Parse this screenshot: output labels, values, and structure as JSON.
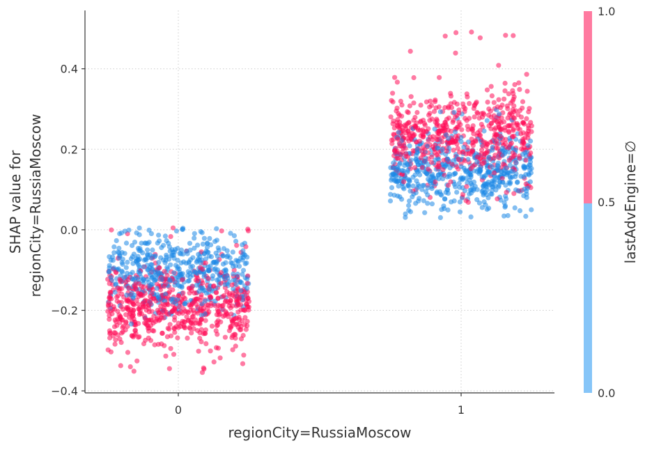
{
  "chart_data": {
    "type": "scatter",
    "title": "",
    "xlabel": "regionCity=RussiaMoscow",
    "ylabel_lines": [
      "SHAP value for",
      "regionCity=RussiaMoscow"
    ],
    "x_ticks": [
      0,
      1
    ],
    "x_tick_labels": [
      "0",
      "1"
    ],
    "xlim": [
      -0.33,
      1.33
    ],
    "y_ticks": [
      -0.4,
      -0.2,
      0.0,
      0.2,
      0.4
    ],
    "y_tick_labels": [
      "−0.4",
      "−0.2",
      "0.0",
      "0.2",
      "0.4"
    ],
    "ylim": [
      -0.405,
      0.55
    ],
    "grid": true,
    "jitter_width": 0.25,
    "colorbar": {
      "label": "lastAdvEngine=∅",
      "ticks": [
        0.0,
        0.5,
        1.0
      ],
      "tick_labels": [
        "0.0",
        "0.5",
        "1.0"
      ],
      "low_color": "#86c5f8",
      "high_color": "#ff7aa0"
    },
    "colors": {
      "low": "#1e88e5",
      "high": "#ff0d57"
    },
    "series": [
      {
        "feature_value": 0,
        "point_count": 1100,
        "blue": {
          "mean": -0.105,
          "sd": 0.045,
          "min": -0.27,
          "max": 0.005
        },
        "pink": {
          "mean": -0.19,
          "sd": 0.05,
          "min": -0.355,
          "max": 0.008
        },
        "pink_share": 0.55
      },
      {
        "feature_value": 1,
        "point_count": 1100,
        "blue": {
          "mean": 0.145,
          "sd": 0.045,
          "min": 0.03,
          "max": 0.3
        },
        "pink": {
          "mean": 0.235,
          "sd": 0.055,
          "min": 0.06,
          "max": 0.495
        },
        "pink_share": 0.55
      }
    ]
  }
}
